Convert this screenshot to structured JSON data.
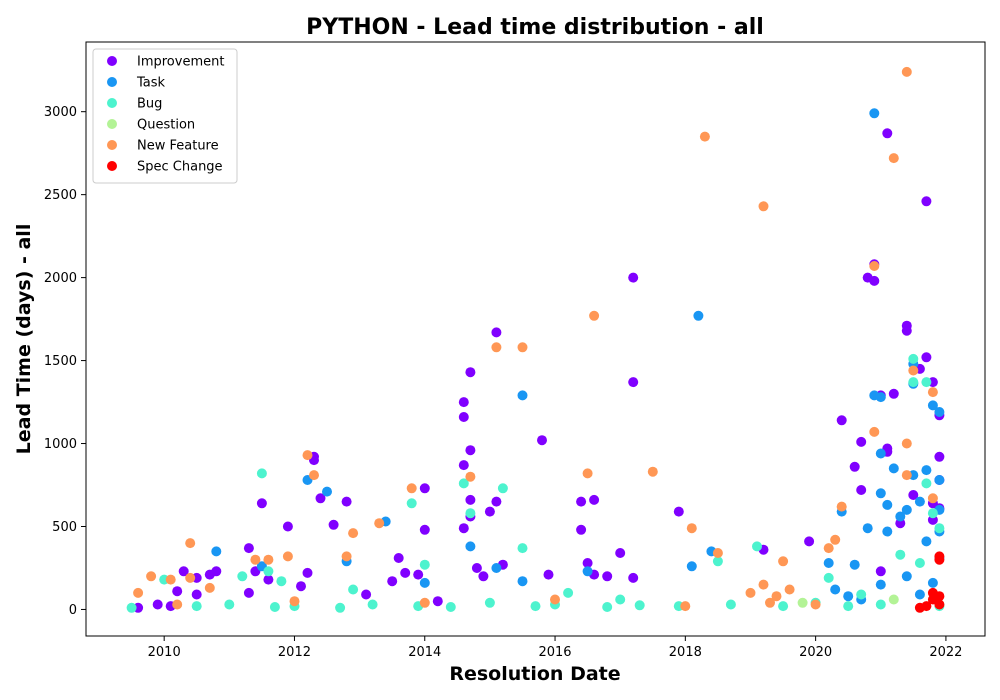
{
  "chart_data": {
    "type": "scatter",
    "title": "PYTHON - Lead time distribution - all",
    "xlabel": "Resolution Date",
    "ylabel": "Lead Time (days) - all",
    "xlim": [
      2008.8,
      2022.6
    ],
    "ylim": [
      -160,
      3420
    ],
    "x_ticks": [
      2010,
      2012,
      2014,
      2016,
      2018,
      2020,
      2022
    ],
    "y_ticks": [
      0,
      500,
      1000,
      1500,
      2000,
      2500,
      3000
    ],
    "grid": false,
    "legend_position": "top-left",
    "series": [
      {
        "name": "Improvement",
        "color": "#8000ff",
        "points": [
          [
            2009.6,
            10
          ],
          [
            2009.9,
            30
          ],
          [
            2010.2,
            110
          ],
          [
            2010.3,
            230
          ],
          [
            2010.5,
            190
          ],
          [
            2010.7,
            210
          ],
          [
            2010.8,
            230
          ],
          [
            2010.5,
            90
          ],
          [
            2010.1,
            20
          ],
          [
            2011.3,
            370
          ],
          [
            2011.4,
            230
          ],
          [
            2011.5,
            640
          ],
          [
            2011.6,
            180
          ],
          [
            2011.9,
            500
          ],
          [
            2012.2,
            220
          ],
          [
            2012.3,
            920
          ],
          [
            2012.3,
            900
          ],
          [
            2012.4,
            670
          ],
          [
            2012.6,
            510
          ],
          [
            2012.8,
            650
          ],
          [
            2011.3,
            100
          ],
          [
            2012.1,
            140
          ],
          [
            2013.1,
            90
          ],
          [
            2013.5,
            170
          ],
          [
            2013.6,
            310
          ],
          [
            2014.0,
            730
          ],
          [
            2014.0,
            480
          ],
          [
            2013.7,
            220
          ],
          [
            2013.9,
            210
          ],
          [
            2014.2,
            50
          ],
          [
            2014.6,
            490
          ],
          [
            2014.6,
            1250
          ],
          [
            2014.6,
            1160
          ],
          [
            2014.7,
            1430
          ],
          [
            2014.7,
            960
          ],
          [
            2014.6,
            870
          ],
          [
            2014.7,
            660
          ],
          [
            2014.7,
            560
          ],
          [
            2014.8,
            250
          ],
          [
            2014.9,
            200
          ],
          [
            2015.0,
            590
          ],
          [
            2015.1,
            1670
          ],
          [
            2015.1,
            650
          ],
          [
            2015.2,
            270
          ],
          [
            2015.8,
            1020
          ],
          [
            2015.9,
            210
          ],
          [
            2016.4,
            650
          ],
          [
            2016.4,
            480
          ],
          [
            2016.5,
            280
          ],
          [
            2016.6,
            660
          ],
          [
            2016.6,
            210
          ],
          [
            2016.8,
            200
          ],
          [
            2017.0,
            340
          ],
          [
            2017.2,
            1370
          ],
          [
            2017.2,
            2000
          ],
          [
            2017.2,
            190
          ],
          [
            2017.9,
            590
          ],
          [
            2019.2,
            360
          ],
          [
            2019.9,
            410
          ],
          [
            2020.4,
            1140
          ],
          [
            2020.6,
            860
          ],
          [
            2020.7,
            1010
          ],
          [
            2020.7,
            720
          ],
          [
            2020.8,
            2000
          ],
          [
            2020.9,
            1980
          ],
          [
            2020.9,
            2080
          ],
          [
            2021.0,
            1290
          ],
          [
            2021.1,
            2870
          ],
          [
            2021.1,
            970
          ],
          [
            2021.1,
            950
          ],
          [
            2021.2,
            1300
          ],
          [
            2021.4,
            1710
          ],
          [
            2021.4,
            1680
          ],
          [
            2021.5,
            690
          ],
          [
            2021.6,
            1450
          ],
          [
            2021.7,
            1520
          ],
          [
            2021.7,
            2460
          ],
          [
            2021.8,
            1370
          ],
          [
            2021.8,
            640
          ],
          [
            2021.8,
            540
          ],
          [
            2021.9,
            1170
          ],
          [
            2021.9,
            920
          ],
          [
            2021.9,
            780
          ],
          [
            2021.9,
            610
          ],
          [
            2021.3,
            520
          ],
          [
            2021.0,
            230
          ]
        ]
      },
      {
        "name": "Task",
        "color": "#1996f3",
        "points": [
          [
            2010.8,
            350
          ],
          [
            2011.5,
            260
          ],
          [
            2012.2,
            780
          ],
          [
            2012.5,
            710
          ],
          [
            2012.8,
            290
          ],
          [
            2013.4,
            530
          ],
          [
            2014.0,
            160
          ],
          [
            2014.7,
            380
          ],
          [
            2015.1,
            250
          ],
          [
            2015.5,
            1290
          ],
          [
            2015.5,
            170
          ],
          [
            2016.5,
            230
          ],
          [
            2018.1,
            260
          ],
          [
            2018.2,
            1770
          ],
          [
            2018.4,
            350
          ],
          [
            2020.2,
            280
          ],
          [
            2020.4,
            590
          ],
          [
            2020.6,
            270
          ],
          [
            2020.8,
            490
          ],
          [
            2020.9,
            2990
          ],
          [
            2020.9,
            1290
          ],
          [
            2021.0,
            1280
          ],
          [
            2021.0,
            940
          ],
          [
            2021.0,
            700
          ],
          [
            2021.1,
            630
          ],
          [
            2021.1,
            470
          ],
          [
            2021.2,
            850
          ],
          [
            2021.3,
            560
          ],
          [
            2021.4,
            600
          ],
          [
            2021.5,
            1480
          ],
          [
            2021.5,
            1360
          ],
          [
            2021.5,
            810
          ],
          [
            2021.6,
            650
          ],
          [
            2021.7,
            840
          ],
          [
            2021.7,
            410
          ],
          [
            2021.8,
            1230
          ],
          [
            2021.9,
            1190
          ],
          [
            2021.9,
            780
          ],
          [
            2021.9,
            600
          ],
          [
            2021.9,
            470
          ],
          [
            2021.9,
            310
          ],
          [
            2021.8,
            160
          ],
          [
            2020.3,
            120
          ],
          [
            2020.5,
            80
          ],
          [
            2021.0,
            150
          ],
          [
            2021.4,
            200
          ],
          [
            2020.7,
            60
          ],
          [
            2021.6,
            90
          ]
        ]
      },
      {
        "name": "Bug",
        "color": "#4df3ce",
        "points": [
          [
            2010.0,
            180
          ],
          [
            2011.2,
            200
          ],
          [
            2011.5,
            820
          ],
          [
            2011.6,
            230
          ],
          [
            2011.8,
            170
          ],
          [
            2012.9,
            120
          ],
          [
            2013.8,
            640
          ],
          [
            2014.0,
            270
          ],
          [
            2014.6,
            760
          ],
          [
            2014.7,
            580
          ],
          [
            2015.2,
            730
          ],
          [
            2015.5,
            370
          ],
          [
            2016.2,
            100
          ],
          [
            2017.0,
            60
          ],
          [
            2018.5,
            290
          ],
          [
            2019.1,
            380
          ],
          [
            2020.2,
            190
          ],
          [
            2020.7,
            90
          ],
          [
            2021.3,
            330
          ],
          [
            2021.5,
            1510
          ],
          [
            2021.5,
            1370
          ],
          [
            2021.7,
            1370
          ],
          [
            2021.7,
            760
          ],
          [
            2021.8,
            580
          ],
          [
            2021.9,
            490
          ],
          [
            2021.6,
            280
          ],
          [
            2009.5,
            10
          ],
          [
            2010.5,
            20
          ],
          [
            2011.0,
            30
          ],
          [
            2011.7,
            15
          ],
          [
            2012.0,
            20
          ],
          [
            2012.7,
            10
          ],
          [
            2013.2,
            30
          ],
          [
            2013.9,
            20
          ],
          [
            2014.4,
            15
          ],
          [
            2015.0,
            40
          ],
          [
            2015.7,
            20
          ],
          [
            2016.0,
            30
          ],
          [
            2016.8,
            15
          ],
          [
            2017.3,
            25
          ],
          [
            2017.9,
            20
          ],
          [
            2018.7,
            30
          ],
          [
            2019.5,
            20
          ],
          [
            2020.0,
            40
          ],
          [
            2020.5,
            20
          ],
          [
            2021.0,
            30
          ],
          [
            2021.9,
            20
          ]
        ]
      },
      {
        "name": "Question",
        "color": "#b3f396",
        "points": [
          [
            2019.8,
            40
          ],
          [
            2021.2,
            60
          ],
          [
            2021.9,
            30
          ]
        ]
      },
      {
        "name": "New Feature",
        "color": "#ff9755",
        "points": [
          [
            2009.6,
            100
          ],
          [
            2009.8,
            200
          ],
          [
            2010.1,
            180
          ],
          [
            2010.4,
            400
          ],
          [
            2010.4,
            190
          ],
          [
            2010.7,
            130
          ],
          [
            2011.4,
            300
          ],
          [
            2011.6,
            300
          ],
          [
            2011.9,
            320
          ],
          [
            2012.2,
            930
          ],
          [
            2012.3,
            810
          ],
          [
            2012.8,
            320
          ],
          [
            2012.9,
            460
          ],
          [
            2013.3,
            520
          ],
          [
            2013.8,
            730
          ],
          [
            2014.7,
            800
          ],
          [
            2015.1,
            1580
          ],
          [
            2015.5,
            1580
          ],
          [
            2016.5,
            820
          ],
          [
            2016.6,
            1770
          ],
          [
            2017.5,
            830
          ],
          [
            2018.1,
            490
          ],
          [
            2018.3,
            2850
          ],
          [
            2018.5,
            340
          ],
          [
            2019.2,
            2430
          ],
          [
            2019.5,
            290
          ],
          [
            2020.2,
            370
          ],
          [
            2020.3,
            420
          ],
          [
            2020.4,
            620
          ],
          [
            2020.9,
            2070
          ],
          [
            2020.9,
            1070
          ],
          [
            2021.2,
            2720
          ],
          [
            2021.4,
            3240
          ],
          [
            2021.4,
            1000
          ],
          [
            2021.4,
            810
          ],
          [
            2021.5,
            1440
          ],
          [
            2021.8,
            1310
          ],
          [
            2021.8,
            670
          ],
          [
            2019.0,
            100
          ],
          [
            2019.2,
            150
          ],
          [
            2019.4,
            80
          ],
          [
            2019.6,
            120
          ],
          [
            2019.3,
            40
          ],
          [
            2010.2,
            30
          ],
          [
            2012.0,
            50
          ],
          [
            2014.0,
            40
          ],
          [
            2016.0,
            60
          ],
          [
            2018.0,
            20
          ],
          [
            2020.0,
            30
          ]
        ]
      },
      {
        "name": "Spec Change",
        "color": "#ff0000",
        "points": [
          [
            2021.6,
            10
          ],
          [
            2021.7,
            20
          ],
          [
            2021.8,
            60
          ],
          [
            2021.8,
            100
          ],
          [
            2021.9,
            30
          ],
          [
            2021.9,
            80
          ],
          [
            2021.9,
            320
          ],
          [
            2021.9,
            300
          ]
        ]
      }
    ]
  }
}
